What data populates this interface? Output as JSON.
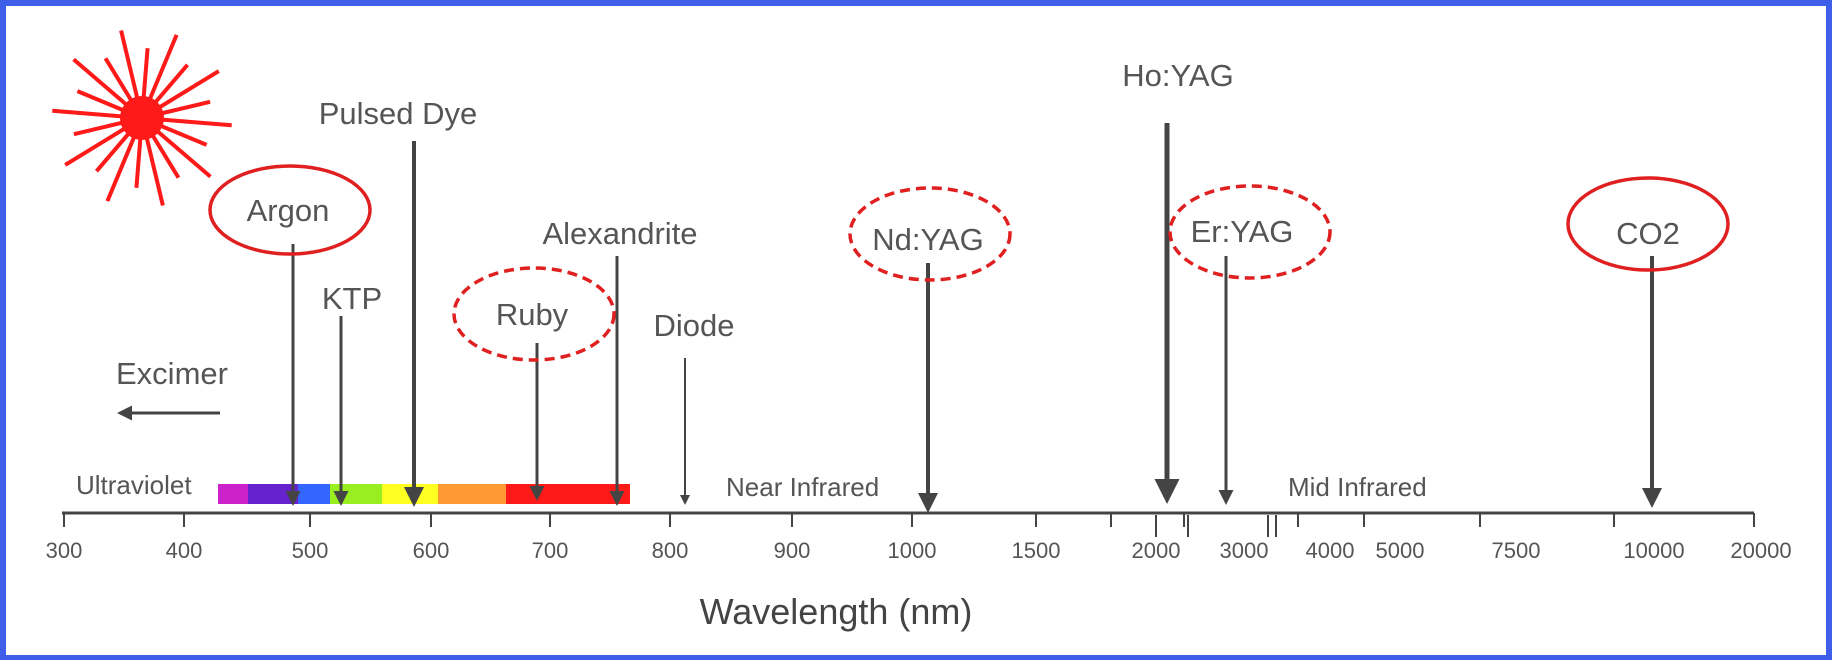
{
  "title": "",
  "lasers": [
    {
      "id": "argon",
      "label": "Argon",
      "circle": "solid"
    },
    {
      "id": "ktp",
      "label": "KTP",
      "circle": "none"
    },
    {
      "id": "pulsed-dye",
      "label": "Pulsed Dye",
      "circle": "none"
    },
    {
      "id": "ruby",
      "label": "Ruby",
      "circle": "dashed"
    },
    {
      "id": "alexandrite",
      "label": "Alexandrite",
      "circle": "none"
    },
    {
      "id": "diode",
      "label": "Diode",
      "circle": "none"
    },
    {
      "id": "ndyag",
      "label": "Nd:YAG",
      "circle": "dashed"
    },
    {
      "id": "hoyag",
      "label": "Ho:YAG",
      "circle": "none"
    },
    {
      "id": "eryag",
      "label": "Er:YAG",
      "circle": "dashed"
    },
    {
      "id": "co2",
      "label": "CO2",
      "circle": "solid"
    },
    {
      "id": "excimer",
      "label": "Excimer",
      "circle": "none"
    }
  ],
  "regions": {
    "ultraviolet": "Ultraviolet",
    "near_infrared": "Near Infrared",
    "mid_infrared": "Mid Infrared"
  },
  "axis": {
    "title": "Wavelength (nm)",
    "ticks": [
      "300",
      "400",
      "500",
      "600",
      "700",
      "800",
      "900",
      "1000",
      "1500",
      "2000",
      "3000",
      "4000",
      "5000",
      "7500",
      "10000",
      "20000"
    ]
  },
  "colors": {
    "arrow": "#444444",
    "circle": "#e02020",
    "laser_icon": "#ff1a1a",
    "border": "#3f5fe8",
    "spectrum": [
      "#cc22cc",
      "#6622cc",
      "#3366ff",
      "#99ee22",
      "#ffff22",
      "#ff9933",
      "#ff1a1a"
    ]
  },
  "icons": {
    "logo": "laser-starburst-icon"
  }
}
